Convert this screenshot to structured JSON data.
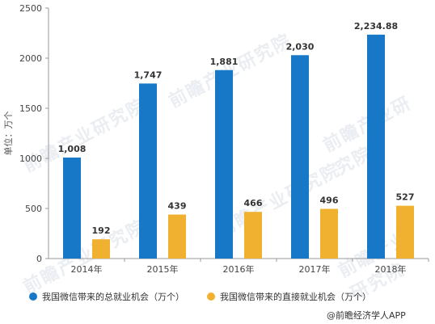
{
  "chart_data": {
    "type": "bar",
    "categories": [
      "2014年",
      "2015年",
      "2016年",
      "2017年",
      "2018年"
    ],
    "series": [
      {
        "name": "我国微信带来的总就业机会（万个）",
        "values": [
          1008,
          1747,
          1881,
          2030,
          2234.88
        ],
        "labels": [
          "1,008",
          "1,747",
          "1,881",
          "2,030",
          "2,234.88"
        ],
        "color": "#1878c8"
      },
      {
        "name": "我国微信带来的直接就业机会（万个）",
        "values": [
          192,
          439,
          466,
          496,
          527
        ],
        "labels": [
          "192",
          "439",
          "466",
          "496",
          "527"
        ],
        "color": "#f0b030"
      }
    ],
    "ylabel": "单位：万个",
    "ylim": [
      0,
      2500
    ],
    "yticks": [
      "0",
      "500",
      "1000",
      "1500",
      "2000",
      "2500"
    ],
    "grid": false,
    "legend": "bottom"
  },
  "source": "@前瞻经济学人APP",
  "watermark": "前瞻产业研究院"
}
